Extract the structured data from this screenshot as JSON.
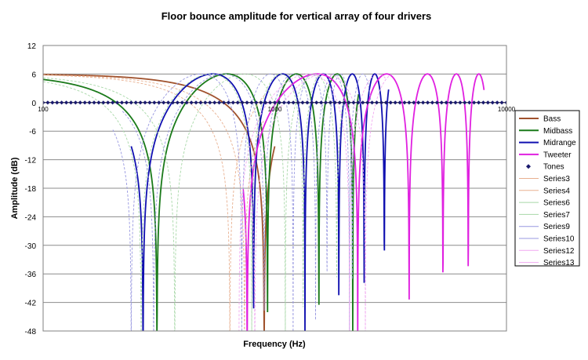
{
  "chart_data": {
    "type": "line",
    "title": "Floor bounce amplitude for vertical array of four drivers",
    "xlabel": "Frequency (Hz)",
    "ylabel": "Amplitude (dB)",
    "xscale": "log",
    "xlim": [
      100,
      10000
    ],
    "ylim": [
      -48,
      12
    ],
    "x_ticks": [
      "100",
      "1000",
      "10000"
    ],
    "y_ticks": [
      12,
      6,
      0,
      -6,
      -12,
      -18,
      -24,
      -30,
      -36,
      -42,
      -48
    ],
    "grid": "horizontal",
    "legend_position": "right",
    "series": [
      {
        "name": "Bass",
        "color": "#a0522d",
        "style": "solid",
        "first_notch_hz": 900,
        "x_range": [
          100,
          1000
        ]
      },
      {
        "name": "Midbass",
        "color": "#1a7a1a",
        "style": "solid",
        "first_notch_hz": 310,
        "x_range": [
          100,
          2300
        ]
      },
      {
        "name": "Midrange",
        "color": "#1010b0",
        "style": "solid",
        "first_notch_hz": 270,
        "x_range": [
          240,
          3100
        ]
      },
      {
        "name": "Tweeter",
        "color": "#e020e0",
        "style": "solid",
        "first_notch_hz": 760,
        "x_range": [
          730,
          8000
        ]
      },
      {
        "name": "Tones",
        "color": "#1a1a6e",
        "style": "markers",
        "y": 0
      },
      {
        "name": "Series3",
        "color": "#e8b090",
        "style": "dashed",
        "first_notch_hz": 740,
        "x_range": [
          100,
          900
        ]
      },
      {
        "name": "Series4",
        "color": "#e8b090",
        "style": "dashed",
        "first_notch_hz": 640,
        "x_range": [
          100,
          900
        ]
      },
      {
        "name": "Series6",
        "color": "#a8d8a8",
        "style": "dashed",
        "first_notch_hz": 265,
        "x_range": [
          100,
          1600
        ]
      },
      {
        "name": "Series7",
        "color": "#a8d8a8",
        "style": "dashed",
        "first_notch_hz": 370,
        "x_range": [
          100,
          2000
        ]
      },
      {
        "name": "Series9",
        "color": "#9898e0",
        "style": "dashed",
        "first_notch_hz": 240,
        "x_range": [
          200,
          2200
        ]
      },
      {
        "name": "Series10",
        "color": "#9898e0",
        "style": "dashed",
        "first_notch_hz": 300,
        "x_range": [
          220,
          2600
        ]
      },
      {
        "name": "Series12",
        "color": "#f0a8f0",
        "style": "dashed",
        "first_notch_hz": 700,
        "x_range": [
          700,
          3000
        ]
      },
      {
        "name": "Series13",
        "color": "#f0a8f0",
        "style": "dashed",
        "first_notch_hz": 820,
        "x_range": [
          780,
          3200
        ]
      }
    ]
  }
}
